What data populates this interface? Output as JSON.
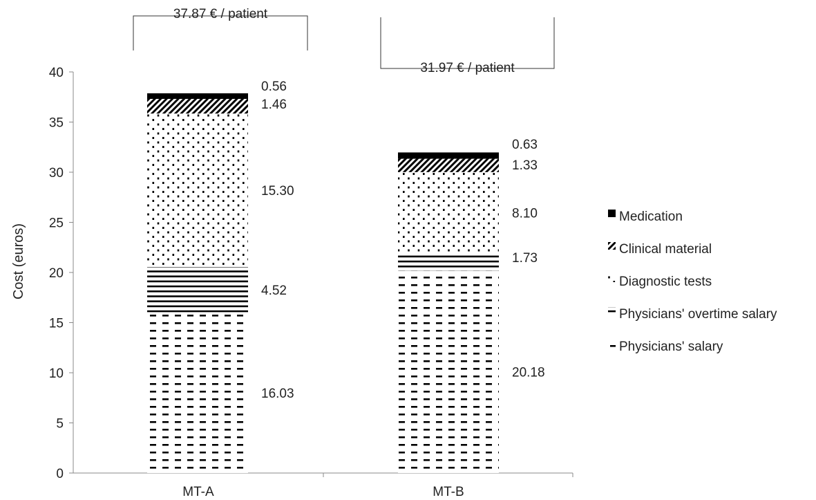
{
  "chart_data": {
    "type": "bar",
    "stacked": true,
    "ylabel": "Cost (euros)",
    "ylim": [
      0,
      40
    ],
    "yticks": [
      0,
      5,
      10,
      15,
      20,
      25,
      30,
      35,
      40
    ],
    "grid": false,
    "legend_position": "right",
    "categories": [
      "MT-A",
      "MT-B"
    ],
    "totals_labels": [
      "37.87 € / patient",
      "31.97 € / patient"
    ],
    "series": [
      {
        "name": "Physicians' salary",
        "values": [
          16.03,
          20.18
        ],
        "labels": [
          "16.03",
          "20.18"
        ],
        "pattern": "dashes"
      },
      {
        "name": "Physicians' overtime salary",
        "values": [
          4.52,
          1.73
        ],
        "labels": [
          "4.52",
          "1.73"
        ],
        "pattern": "hlines"
      },
      {
        "name": "Diagnostic tests",
        "values": [
          15.3,
          8.1
        ],
        "labels": [
          "15.30",
          "8.10"
        ],
        "pattern": "dots"
      },
      {
        "name": "Clinical material",
        "values": [
          1.46,
          1.33
        ],
        "labels": [
          "1.46",
          "1.33"
        ],
        "pattern": "diagonal"
      },
      {
        "name": "Medication",
        "values": [
          0.56,
          0.63
        ],
        "labels": [
          "0.56",
          "0.63"
        ],
        "pattern": "solid"
      }
    ],
    "legend_order": [
      "Medication",
      "Clinical material",
      "Diagnostic tests",
      "Physicians' overtime salary",
      "Physicians' salary"
    ]
  }
}
